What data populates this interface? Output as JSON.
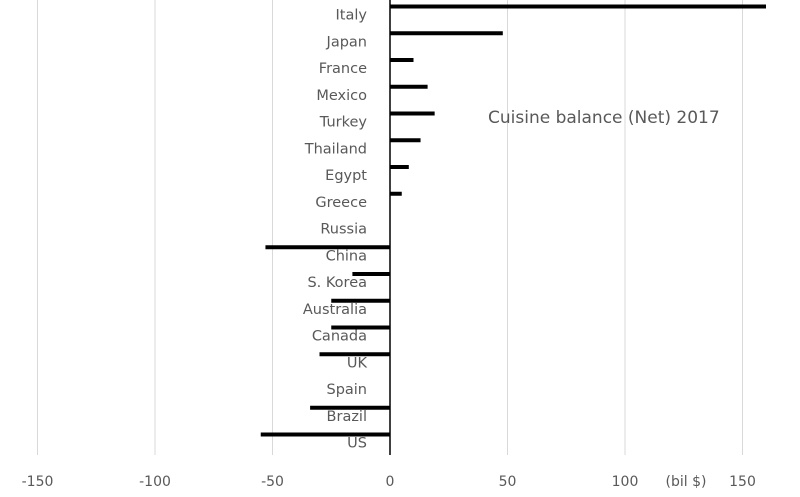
{
  "chart_data": {
    "type": "bar",
    "orientation": "horizontal",
    "title": "Cuisine balance (Net) 2017",
    "xlabel": "",
    "ylabel": "",
    "unit_label": "(bil $)",
    "xlim": [
      -150,
      160
    ],
    "x_ticks": [
      -150,
      -100,
      -50,
      0,
      50,
      100,
      150
    ],
    "grid": "vertical",
    "legend": "none",
    "bar_color": "#000000",
    "grid_color": "#d9d9d9",
    "categories": [
      "Italy",
      "Japan",
      "France",
      "Mexico",
      "Turkey",
      "Thailand",
      "Egypt",
      "Greece",
      "Russia",
      "China",
      "S. Korea",
      "Australia",
      "Canada",
      "UK",
      "Spain",
      "Brazil",
      "US"
    ],
    "values": [
      160,
      48,
      10,
      16,
      19,
      13,
      8,
      5,
      0,
      -53,
      -16,
      -25,
      -25,
      -30,
      0,
      -34,
      -55
    ]
  }
}
